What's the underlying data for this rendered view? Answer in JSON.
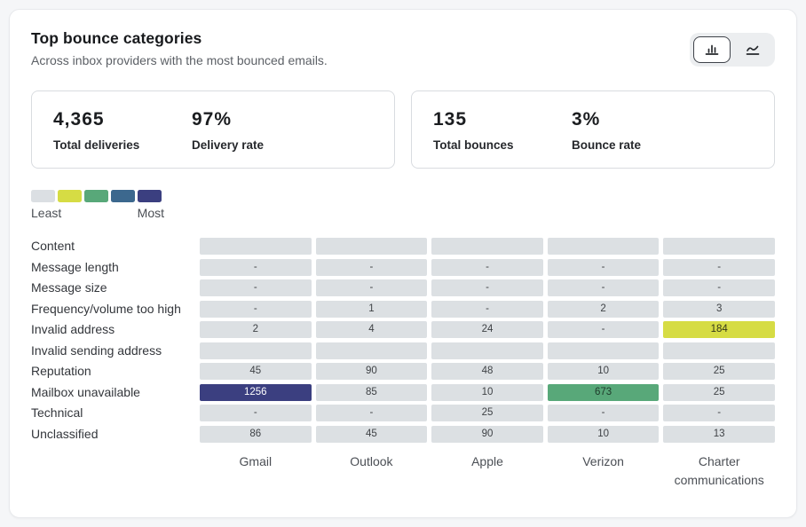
{
  "header": {
    "title": "Top bounce categories",
    "subtitle": "Across inbox providers with the most bounced emails."
  },
  "toolbar": {
    "views": [
      {
        "id": "bar-chart",
        "icon": "bar-chart-icon",
        "selected": true
      },
      {
        "id": "line-chart",
        "icon": "line-chart-icon",
        "selected": false
      }
    ]
  },
  "summary_cards": [
    {
      "stats": [
        {
          "value": "4,365",
          "label": "Total deliveries"
        },
        {
          "value": "97%",
          "label": "Delivery rate"
        }
      ]
    },
    {
      "stats": [
        {
          "value": "135",
          "label": "Total bounces"
        },
        {
          "value": "3%",
          "label": "Bounce rate"
        }
      ]
    }
  ],
  "legend": {
    "least_label": "Least",
    "most_label": "Most",
    "scale_colors": [
      "#dbdfe3",
      "#d6dc44",
      "#58a879",
      "#3c688e",
      "#3b3f80"
    ]
  },
  "chart_data": {
    "type": "heatmap",
    "title": "Top bounce categories",
    "rows": [
      "Content",
      "Message length",
      "Message size",
      "Frequency/volume too high",
      "Invalid address",
      "Invalid sending address",
      "Reputation",
      "Mailbox unavailable",
      "Technical",
      "Unclassified"
    ],
    "columns": [
      "Gmail",
      "Outlook",
      "Apple",
      "Verizon",
      "Charter communications"
    ],
    "values": [
      [
        "",
        "",
        "",
        "",
        ""
      ],
      [
        "-",
        "-",
        "-",
        "-",
        "-"
      ],
      [
        "-",
        "-",
        "-",
        "-",
        "-"
      ],
      [
        "-",
        "1",
        "-",
        "2",
        "3"
      ],
      [
        "2",
        "4",
        "24",
        "-",
        "184"
      ],
      [
        "",
        "",
        "",
        "",
        ""
      ],
      [
        "45",
        "90",
        "48",
        "10",
        "25"
      ],
      [
        "1256",
        "85",
        "10",
        "673",
        "25"
      ],
      [
        "-",
        "-",
        "25",
        "-",
        "-"
      ],
      [
        "86",
        "45",
        "90",
        "10",
        "13"
      ]
    ],
    "levels": [
      [
        0,
        0,
        0,
        0,
        0
      ],
      [
        0,
        0,
        0,
        0,
        0
      ],
      [
        0,
        0,
        0,
        0,
        0
      ],
      [
        0,
        0,
        0,
        0,
        0
      ],
      [
        0,
        0,
        0,
        0,
        1
      ],
      [
        0,
        0,
        0,
        0,
        0
      ],
      [
        0,
        0,
        0,
        0,
        0
      ],
      [
        4,
        0,
        0,
        2,
        0
      ],
      [
        0,
        0,
        0,
        0,
        0
      ],
      [
        0,
        0,
        0,
        0,
        0
      ]
    ],
    "level_colors": {
      "0": {
        "bg": "#dce0e3",
        "text": "#3f4246"
      },
      "1": {
        "bg": "#d6dc44",
        "text": "#34371c"
      },
      "2": {
        "bg": "#58a879",
        "text": "#1e3a2a"
      },
      "3": {
        "bg": "#3c688e",
        "text": "#ffffff"
      },
      "4": {
        "bg": "#3b3f80",
        "text": "#ffffff"
      }
    },
    "legend_note": "color scale from Least to Most"
  }
}
